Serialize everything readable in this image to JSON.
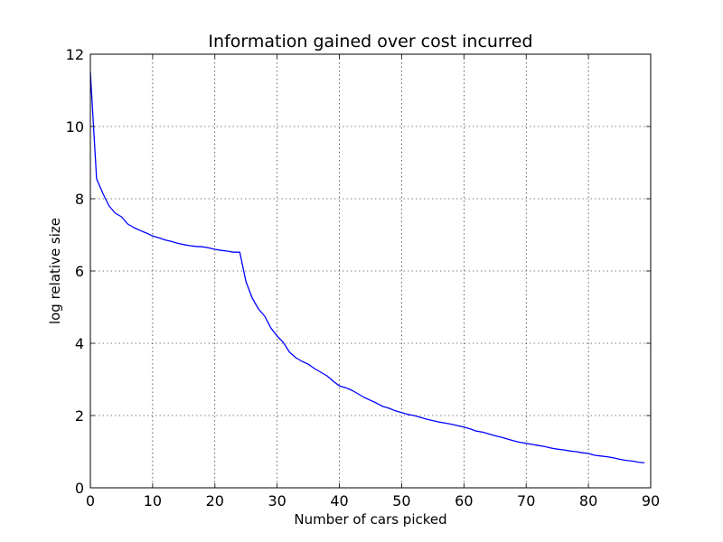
{
  "chart_data": {
    "type": "line",
    "title": "Information gained over cost incurred",
    "xlabel": "Number of cars picked",
    "ylabel": "log relative size",
    "xlim": [
      0,
      90
    ],
    "ylim": [
      0,
      12
    ],
    "xticks": [
      0,
      10,
      20,
      30,
      40,
      50,
      60,
      70,
      80,
      90
    ],
    "yticks": [
      0,
      2,
      4,
      6,
      8,
      10,
      12
    ],
    "grid": true,
    "series": [
      {
        "color": "#0000ff",
        "x": [
          0,
          1,
          2,
          3,
          4,
          5,
          6,
          7,
          8,
          9,
          10,
          11,
          12,
          13,
          14,
          15,
          16,
          17,
          18,
          19,
          20,
          21,
          22,
          23,
          24,
          25,
          26,
          27,
          28,
          29,
          30,
          31,
          32,
          33,
          34,
          35,
          36,
          37,
          38,
          39,
          40,
          41,
          42,
          43,
          44,
          45,
          46,
          47,
          48,
          49,
          50,
          51,
          52,
          53,
          54,
          55,
          56,
          57,
          58,
          59,
          60,
          61,
          62,
          63,
          64,
          65,
          66,
          67,
          68,
          69,
          70,
          71,
          72,
          73,
          74,
          75,
          76,
          77,
          78,
          79,
          80,
          81,
          82,
          83,
          84,
          85,
          86,
          87,
          88,
          89
        ],
        "y": [
          11.5,
          8.55,
          8.15,
          7.8,
          7.6,
          7.5,
          7.3,
          7.2,
          7.12,
          7.05,
          6.97,
          6.92,
          6.86,
          6.82,
          6.77,
          6.73,
          6.7,
          6.68,
          6.67,
          6.64,
          6.6,
          6.57,
          6.55,
          6.52,
          6.52,
          5.7,
          5.25,
          4.95,
          4.75,
          4.42,
          4.2,
          4.02,
          3.75,
          3.6,
          3.5,
          3.42,
          3.3,
          3.2,
          3.1,
          2.95,
          2.82,
          2.77,
          2.7,
          2.6,
          2.5,
          2.42,
          2.34,
          2.25,
          2.2,
          2.13,
          2.08,
          2.03,
          2.0,
          1.95,
          1.9,
          1.86,
          1.82,
          1.79,
          1.76,
          1.72,
          1.68,
          1.63,
          1.57,
          1.54,
          1.49,
          1.44,
          1.4,
          1.35,
          1.3,
          1.26,
          1.23,
          1.2,
          1.17,
          1.14,
          1.1,
          1.07,
          1.05,
          1.02,
          1.0,
          0.97,
          0.95,
          0.9,
          0.88,
          0.86,
          0.83,
          0.79,
          0.76,
          0.74,
          0.71,
          0.69
        ]
      }
    ]
  }
}
